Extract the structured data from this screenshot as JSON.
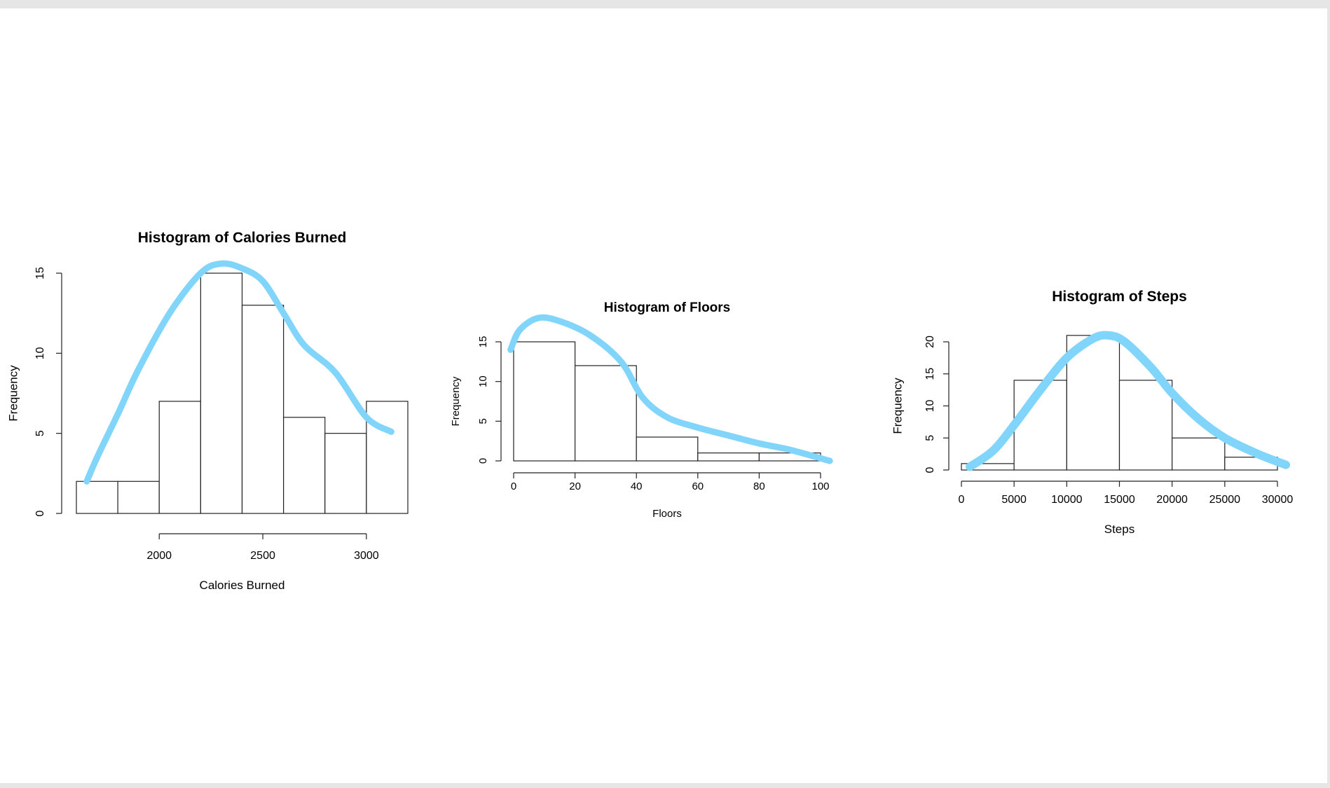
{
  "chart_data": [
    {
      "type": "bar",
      "title": "Histogram of Calories Burned",
      "xlabel": "Calories Burned",
      "ylabel": "Frequency",
      "bin_edges": [
        1600,
        1800,
        2000,
        2200,
        2400,
        2600,
        2800,
        3000,
        3200
      ],
      "values": [
        2,
        2,
        7,
        15,
        13,
        6,
        5,
        7
      ],
      "xlim": [
        1600,
        3200
      ],
      "ylim": [
        0,
        15
      ],
      "x_ticks": [
        2000,
        2500,
        3000
      ],
      "y_ticks": [
        0,
        5,
        10,
        15
      ],
      "grid": false,
      "overlay_curve": {
        "color": "#81d4fa",
        "points": [
          [
            1650,
            2
          ],
          [
            1700,
            3.5
          ],
          [
            1800,
            6.2
          ],
          [
            1900,
            9
          ],
          [
            2050,
            12.5
          ],
          [
            2200,
            15
          ],
          [
            2300,
            15.6
          ],
          [
            2400,
            15.3
          ],
          [
            2500,
            14.5
          ],
          [
            2600,
            12.5
          ],
          [
            2700,
            10.5
          ],
          [
            2850,
            8.8
          ],
          [
            3000,
            6
          ],
          [
            3120,
            5.1
          ]
        ]
      }
    },
    {
      "type": "bar",
      "title": "Histogram of Floors",
      "xlabel": "Floors",
      "ylabel": "Frequency",
      "bin_edges": [
        0,
        20,
        40,
        60,
        80,
        100
      ],
      "values": [
        15,
        12,
        3,
        1,
        1
      ],
      "xlim": [
        0,
        100
      ],
      "ylim": [
        0,
        15
      ],
      "x_ticks": [
        0,
        20,
        40,
        60,
        80,
        100
      ],
      "y_ticks": [
        0,
        5,
        10,
        15
      ],
      "grid": false,
      "overlay_curve": {
        "color": "#81d4fa",
        "points": [
          [
            -1,
            14
          ],
          [
            2,
            16.5
          ],
          [
            8,
            18
          ],
          [
            15,
            17.6
          ],
          [
            25,
            15.8
          ],
          [
            35,
            12.5
          ],
          [
            42,
            8
          ],
          [
            50,
            5.5
          ],
          [
            60,
            4.2
          ],
          [
            70,
            3.2
          ],
          [
            80,
            2.2
          ],
          [
            90,
            1.4
          ],
          [
            103,
            0
          ]
        ]
      }
    },
    {
      "type": "bar",
      "title": "Histogram of Steps",
      "xlabel": "Steps",
      "ylabel": "Frequency",
      "bin_edges": [
        0,
        5000,
        10000,
        15000,
        20000,
        25000,
        30000
      ],
      "values": [
        1,
        14,
        21,
        14,
        5,
        2
      ],
      "xlim": [
        0,
        30000
      ],
      "ylim": [
        0,
        20
      ],
      "x_ticks": [
        0,
        5000,
        10000,
        15000,
        20000,
        25000,
        30000
      ],
      "y_ticks": [
        0,
        5,
        10,
        15,
        20
      ],
      "grid": false,
      "overlay_curve": {
        "color": "#81d4fa",
        "points": [
          [
            800,
            0.5
          ],
          [
            3000,
            3
          ],
          [
            5000,
            7
          ],
          [
            7500,
            12.5
          ],
          [
            10000,
            17.5
          ],
          [
            12500,
            20.5
          ],
          [
            14000,
            21
          ],
          [
            15500,
            20
          ],
          [
            18000,
            16
          ],
          [
            20000,
            12
          ],
          [
            22500,
            8
          ],
          [
            25000,
            5
          ],
          [
            28000,
            2.6
          ],
          [
            30800,
            0.8
          ]
        ]
      }
    }
  ]
}
